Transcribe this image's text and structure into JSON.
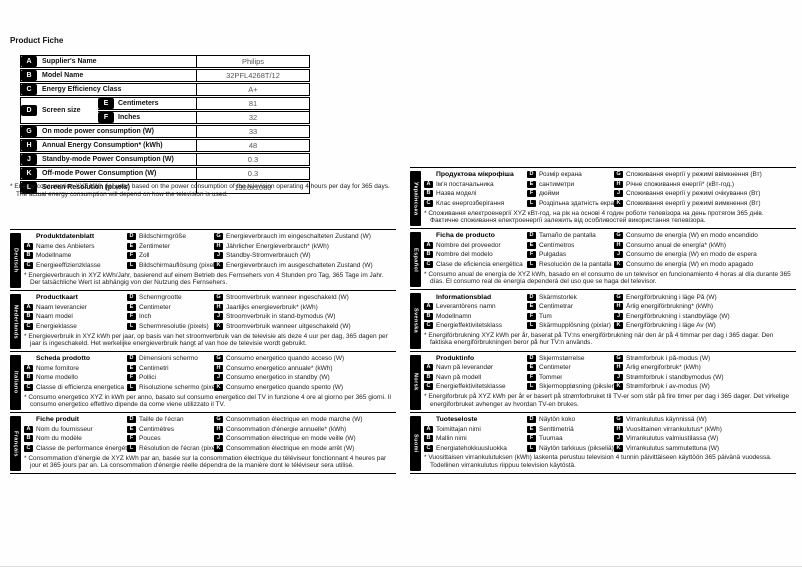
{
  "page": {
    "title": "Product Fiche",
    "footnote_lines": [
      "* Energy consumption XYZ kWh per year, based on the power consumption of the television operating 4 hours per day for 365 days.",
      "The actual energy consumption will depend on how the television is used."
    ]
  },
  "table": {
    "rows": [
      {
        "letter": "A",
        "label": "Supplier's Name",
        "value": "Philips"
      },
      {
        "letter": "B",
        "label": "Model Name",
        "value": "32PFL4268T/12"
      },
      {
        "letter": "C",
        "label": "Energy Efficiency Class",
        "value": "A+"
      },
      {
        "letter": "G",
        "label": "On mode power consumption (W)",
        "value": "33"
      },
      {
        "letter": "H",
        "label": "Annual Energy Consumption* (kWh)",
        "value": "48"
      },
      {
        "letter": "J",
        "label": "Standby-mode Power Consumption (W)",
        "value": "0.3"
      },
      {
        "letter": "K",
        "label": "Off-mode Power Consumption (W)",
        "value": "0.3"
      },
      {
        "letter": "L",
        "label": "Screen Resolution (pixels)",
        "value": "1920x1080"
      }
    ],
    "screen_size": {
      "letter": "D",
      "label": "Screen size",
      "sub": [
        {
          "letter": "E",
          "label": "Centimeters",
          "value": "81"
        },
        {
          "letter": "F",
          "label": "Inches",
          "value": "32"
        }
      ]
    }
  },
  "sections": {
    "left": [
      {
        "lang": "Deutsch",
        "title": "Produktdatenblatt",
        "col1": [
          {
            "letter": "A",
            "label": "Name des Anbieters"
          },
          {
            "letter": "B",
            "label": "Modellname"
          },
          {
            "letter": "C",
            "label": "Energieeffizienzklasse"
          }
        ],
        "col2": [
          {
            "letter": "D",
            "label": "Bildschirmgröße"
          },
          {
            "letter": "E",
            "label": "Zentimeter"
          },
          {
            "letter": "F",
            "label": "Zoll"
          },
          {
            "letter": "L",
            "label": "Bildschirmauflösung (pixel)"
          }
        ],
        "col3": [
          {
            "letter": "G",
            "label": "Energieverbrauch im eingeschalteten Zustand (W)"
          },
          {
            "letter": "H",
            "label": "Jährlicher Energieverbrauch* (kWh)"
          },
          {
            "letter": "J",
            "label": "Standby-Stromverbrauch (W)"
          },
          {
            "letter": "K",
            "label": "Energieverbrauch im ausgeschalteten Zustand (W)"
          }
        ],
        "footnote": "* Energieverbrauch in XYZ kWh/Jahr, basierend auf einem Betrieb des Fernsehers von 4 Stunden pro Tag, 365 Tage im Jahr. Der tatsächliche Wert ist abhängig von der Nutzung des Fernsehers."
      },
      {
        "lang": "Nederlands",
        "title": "Productkaart",
        "col1": [
          {
            "letter": "A",
            "label": "Naam leverancier"
          },
          {
            "letter": "B",
            "label": "Naam model"
          },
          {
            "letter": "C",
            "label": "Energieklasse"
          }
        ],
        "col2": [
          {
            "letter": "D",
            "label": "Schermgrootte"
          },
          {
            "letter": "E",
            "label": "Centimeter"
          },
          {
            "letter": "F",
            "label": "Inch"
          },
          {
            "letter": "L",
            "label": "Schermresolutie (pixels)"
          }
        ],
        "col3": [
          {
            "letter": "G",
            "label": "Stroomverbruik wanneer ingeschakeld (W)"
          },
          {
            "letter": "H",
            "label": "Jaarlijks energieverbruik* (kWh)"
          },
          {
            "letter": "J",
            "label": "Stroomverbruik in stand-bymodus (W)"
          },
          {
            "letter": "K",
            "label": "Stroomverbruik wanneer uitgeschakeld (W)"
          }
        ],
        "footnote": "* Energieverbruik in XYZ kWh per jaar, op basis van het stroomverbruik van de televisie als deze 4 uur per dag, 365 dagen per jaar is ingeschakeld. Het werkelijke energieverbruik hangt af van hoe de televisie wordt gebruikt."
      },
      {
        "lang": "Italiano",
        "title": "Scheda prodotto",
        "col1": [
          {
            "letter": "A",
            "label": "Nome fornitore"
          },
          {
            "letter": "B",
            "label": "Nome modello"
          },
          {
            "letter": "C",
            "label": "Classe di efficienza energetica"
          }
        ],
        "col2": [
          {
            "letter": "D",
            "label": "Dimensioni schermo"
          },
          {
            "letter": "E",
            "label": "Centimetri"
          },
          {
            "letter": "F",
            "label": "Pollici"
          },
          {
            "letter": "L",
            "label": "Risoluzione schermo (pixel)"
          }
        ],
        "col3": [
          {
            "letter": "G",
            "label": "Consumo energetico quando acceso (W)"
          },
          {
            "letter": "H",
            "label": "Consumo energetico annuale* (kWh)"
          },
          {
            "letter": "J",
            "label": "Consumo energetico in standby (W)"
          },
          {
            "letter": "K",
            "label": "Consumo energetico quando spento (W)"
          }
        ],
        "footnote": "* Consumo energetico XYZ in kWh per anno, basato sul consumo energetico del TV in funzione 4 ore al giorno per 365 giorni. Il consumo energetico effettivo dipende da come viene utilizzato il TV."
      },
      {
        "lang": "Français",
        "title": "Fiche produit",
        "col1": [
          {
            "letter": "A",
            "label": "Nom du fournisseur"
          },
          {
            "letter": "B",
            "label": "Nom du modèle"
          },
          {
            "letter": "C",
            "label": "Classe de performance énergétique"
          }
        ],
        "col2": [
          {
            "letter": "D",
            "label": "Taille de l'écran"
          },
          {
            "letter": "E",
            "label": "Centimètres"
          },
          {
            "letter": "F",
            "label": "Pouces"
          },
          {
            "letter": "L",
            "label": "Résolution de l'écran (pixels)"
          }
        ],
        "col3": [
          {
            "letter": "G",
            "label": "Consommation électrique en mode marche (W)"
          },
          {
            "letter": "H",
            "label": "Consommation d'énergie annuelle* (kWh)"
          },
          {
            "letter": "J",
            "label": "Consommation électrique en mode veille (W)"
          },
          {
            "letter": "K",
            "label": "Consommation électrique en mode arrêt (W)"
          }
        ],
        "footnote": "* Consommation d'énergie de XYZ kWh par an, basée sur la consommation électrique du téléviseur fonctionnant 4 heures par jour et 365 jours par an. La consommation d'énergie réelle dépendra de la manière dont le téléviseur sera utilisé."
      }
    ],
    "right": [
      {
        "lang": "Українська",
        "title": "Продуктова мікрофіша",
        "col1": [
          {
            "letter": "A",
            "label": "Ім'я постачальника"
          },
          {
            "letter": "B",
            "label": "Назва моделі"
          },
          {
            "letter": "C",
            "label": "Клас енергозберігання"
          }
        ],
        "col2": [
          {
            "letter": "D",
            "label": "Розмір екрана"
          },
          {
            "letter": "E",
            "label": "сантиметри"
          },
          {
            "letter": "F",
            "label": "дюйми"
          },
          {
            "letter": "L",
            "label": "Роздільна здатність екрана (пікселі)"
          }
        ],
        "col3": [
          {
            "letter": "G",
            "label": "Споживання енергії у режимі ввімкнення (Вт)"
          },
          {
            "letter": "H",
            "label": "Річне споживання енергії* (кВт-год.)"
          },
          {
            "letter": "J",
            "label": "Споживання енергії у режимі очікування (Вт)"
          },
          {
            "letter": "K",
            "label": "Споживання енергії у режимі вимкнення (Вт)"
          }
        ],
        "footnote": "* Споживання електроенергії XYZ кВт-год. на рік на основі 4 годин роботи телевізора на день протягом 365 днів. Фактичне споживання електроенергії залежить від особливостей використання телевізора."
      },
      {
        "lang": "Español",
        "title": "Ficha de producto",
        "col1": [
          {
            "letter": "A",
            "label": "Nombre del proveedor"
          },
          {
            "letter": "B",
            "label": "Nombre del modelo"
          },
          {
            "letter": "C",
            "label": "Clase de eficiencia energética"
          }
        ],
        "col2": [
          {
            "letter": "D",
            "label": "Tamaño de pantalla"
          },
          {
            "letter": "E",
            "label": "Centímetros"
          },
          {
            "letter": "F",
            "label": "Pulgadas"
          },
          {
            "letter": "L",
            "label": "Resolución de la pantalla (píxeles)"
          }
        ],
        "col3": [
          {
            "letter": "G",
            "label": "Consumo de energía (W) en modo encendido"
          },
          {
            "letter": "H",
            "label": "Consumo anual de energía* (kWh)"
          },
          {
            "letter": "J",
            "label": "Consumo de energía (W) en modo de espera"
          },
          {
            "letter": "K",
            "label": "Consumo de energía (W) en modo apagado"
          }
        ],
        "footnote": "* Consumo anual de energía de XYZ kWh, basado en el consumo de un televisor en funcionamiento 4 horas al día durante 365 días. El consumo real de energía dependerá del uso que se haga del televisor."
      },
      {
        "lang": "Svenska",
        "title": "Informationsblad",
        "col1": [
          {
            "letter": "A",
            "label": "Leverantörens namn"
          },
          {
            "letter": "B",
            "label": "Modellnamn"
          },
          {
            "letter": "C",
            "label": "Energieffektivitetsklass"
          }
        ],
        "col2": [
          {
            "letter": "D",
            "label": "Skärmstorlek"
          },
          {
            "letter": "E",
            "label": "Centimetrar"
          },
          {
            "letter": "F",
            "label": "Tum"
          },
          {
            "letter": "L",
            "label": "Skärmupplösning (pixlar)"
          }
        ],
        "col3": [
          {
            "letter": "G",
            "label": "Energiförbrukning i läge På (W)"
          },
          {
            "letter": "H",
            "label": "Årlig energiförbrukning* (kWh)"
          },
          {
            "letter": "J",
            "label": "Energiförbrukning i standbyläge (W)"
          },
          {
            "letter": "K",
            "label": "Energiförbrukning i läge Av (W)"
          }
        ],
        "footnote": "* Energiförbrukning XYZ kWh per år, baserat på TV:ns energiförbrukning när den är på 4 timmar per dag i 365 dagar. Den faktiska energiförbrukningen beror på hur TV:n används."
      },
      {
        "lang": "Norsk",
        "title": "Produktinfo",
        "col1": [
          {
            "letter": "A",
            "label": "Navn på leverandør"
          },
          {
            "letter": "B",
            "label": "Navn på modell"
          },
          {
            "letter": "C",
            "label": "Energieffektivitetsklasse"
          }
        ],
        "col2": [
          {
            "letter": "D",
            "label": "Skjermstørrelse"
          },
          {
            "letter": "E",
            "label": "Centimeter"
          },
          {
            "letter": "F",
            "label": "Tommer"
          },
          {
            "letter": "L",
            "label": "Skjermoppløsning (piksler)"
          }
        ],
        "col3": [
          {
            "letter": "G",
            "label": "Strømforbruk i på-modus (W)"
          },
          {
            "letter": "H",
            "label": "Årlig energiforbruk* (kWh)"
          },
          {
            "letter": "J",
            "label": "Strømforbruk i standbymodus (W)"
          },
          {
            "letter": "K",
            "label": "Strømforbruk i av-modus (W)"
          }
        ],
        "footnote": "* Energiforbruk på XYZ kWh per år er basert på strømforbruket til TV-er som står på fire timer per dag i 365 dager. Det virkelige energiforbruket avhenger av hvordan TV-en brukes."
      },
      {
        "lang": "Suomi",
        "title": "Tuoteseloste",
        "col1": [
          {
            "letter": "A",
            "label": "Toimittajan nimi"
          },
          {
            "letter": "B",
            "label": "Mallin nimi"
          },
          {
            "letter": "C",
            "label": "Energiatehokkuusluokka"
          }
        ],
        "col2": [
          {
            "letter": "D",
            "label": "Näytön koko"
          },
          {
            "letter": "E",
            "label": "Senttimetriä"
          },
          {
            "letter": "F",
            "label": "Tuumaa"
          },
          {
            "letter": "L",
            "label": "Näytön tarkkuus (pikseliä)"
          }
        ],
        "col3": [
          {
            "letter": "G",
            "label": "Virrankulutus käynnissä (W)"
          },
          {
            "letter": "H",
            "label": "Vuosittainen virrankulutus* (kWh)"
          },
          {
            "letter": "J",
            "label": "Virrankulutus valmiustilassa (W)"
          },
          {
            "letter": "K",
            "label": "Virrankulutus sammutettuna (W)"
          }
        ],
        "footnote": "* Vuosittaisen virrankulutuksen (kWh) laskenta perustuu television 4 tunnin päivittäiseen käyttöön 365 päivänä vuodessa. Todellinen virrankulutus riippuu television käytöstä."
      }
    ]
  }
}
